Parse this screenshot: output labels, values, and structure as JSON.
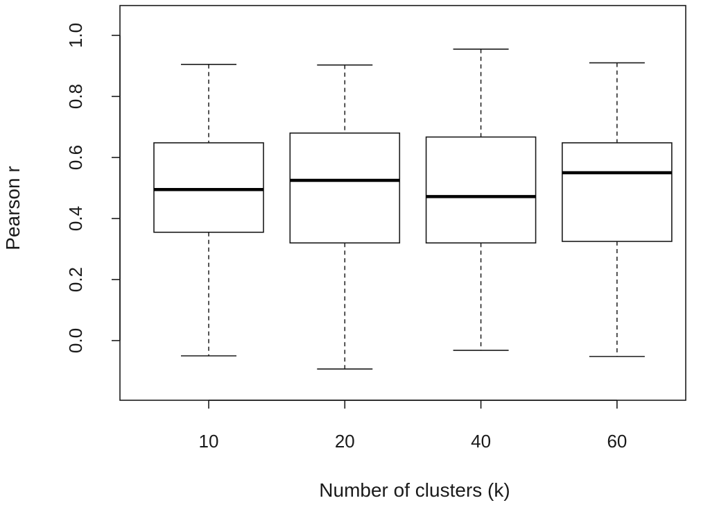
{
  "chart_data": {
    "type": "boxplot",
    "title": "",
    "xlabel": "Number of clusters (k)",
    "ylabel": "Pearson r",
    "categories": [
      "10",
      "20",
      "40",
      "60"
    ],
    "boxes": [
      {
        "category": "10",
        "whisker_low": -0.05,
        "q1": 0.355,
        "median": 0.495,
        "q3": 0.648,
        "whisker_high": 0.905
      },
      {
        "category": "20",
        "whisker_low": -0.093,
        "q1": 0.32,
        "median": 0.525,
        "q3": 0.68,
        "whisker_high": 0.903
      },
      {
        "category": "40",
        "whisker_low": -0.032,
        "q1": 0.32,
        "median": 0.472,
        "q3": 0.667,
        "whisker_high": 0.955
      },
      {
        "category": "60",
        "whisker_low": -0.052,
        "q1": 0.325,
        "median": 0.55,
        "q3": 0.648,
        "whisker_high": 0.91
      }
    ],
    "y_ticks": [
      "0.0",
      "0.2",
      "0.4",
      "0.6",
      "0.8",
      "1.0"
    ],
    "ylim": [
      -0.19,
      1.1
    ],
    "grid": false,
    "legend": "none"
  }
}
